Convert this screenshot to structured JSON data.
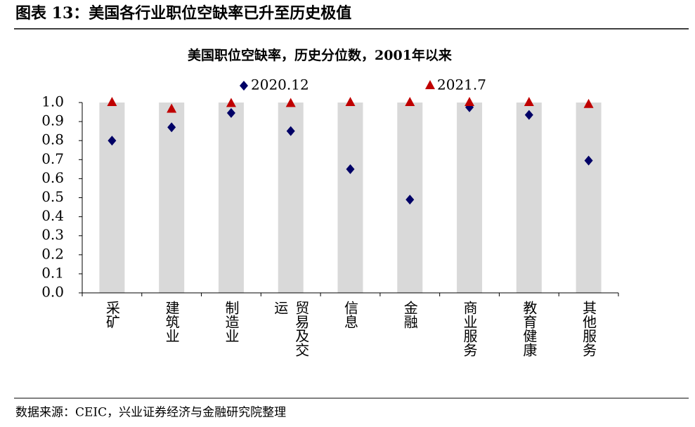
{
  "header": {
    "title": "图表 13：美国各行业职位空缺率已升至历史极值"
  },
  "chart_data": {
    "type": "scatter",
    "title": "美国职位空缺率，历史分位数，2001年以来",
    "categories": [
      "采矿",
      "建筑业",
      "制造业",
      "贸易及交运",
      "信息",
      "金融",
      "商业服务",
      "教育健康",
      "其他服务"
    ],
    "series": [
      {
        "name": "2020.12",
        "color": "#000066",
        "marker": "diamond",
        "values": [
          0.8,
          0.87,
          0.945,
          0.85,
          0.65,
          0.49,
          0.975,
          0.935,
          0.695
        ]
      },
      {
        "name": "2021.7",
        "color": "#c00000",
        "marker": "triangle",
        "values": [
          1.0,
          0.965,
          0.995,
          0.995,
          1.0,
          1.0,
          1.0,
          1.0,
          0.99
        ]
      }
    ],
    "ylim": [
      0,
      1
    ],
    "yticks": [
      {
        "value": 0,
        "label": "0.0"
      },
      0.1,
      0.2,
      0.3,
      0.4,
      0.5,
      0.6,
      0.7,
      0.8,
      0.9,
      {
        "value": 1,
        "label": "1.0"
      }
    ],
    "band_color": "#d9d9d9"
  },
  "footer": {
    "source": "数据来源：CEIC，兴业证券经济与金融研究院整理"
  }
}
